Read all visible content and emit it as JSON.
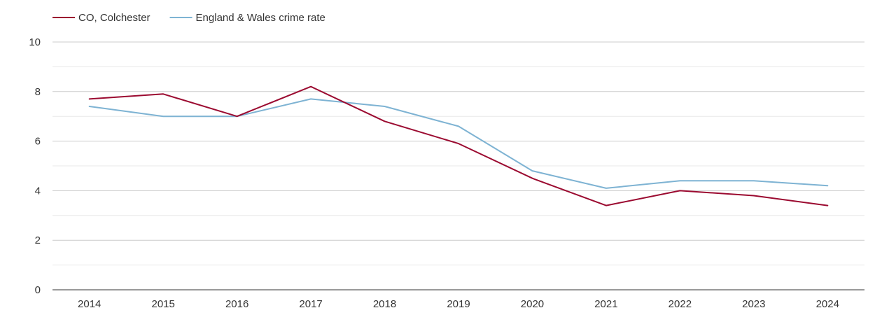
{
  "chart_data": {
    "type": "line",
    "title": "",
    "xlabel": "",
    "ylabel": "",
    "x": [
      "2014",
      "2015",
      "2016",
      "2017",
      "2018",
      "2019",
      "2020",
      "2021",
      "2022",
      "2023",
      "2024"
    ],
    "ylim": [
      0,
      10
    ],
    "yticks": [
      "0",
      "2",
      "4",
      "6",
      "8",
      "10"
    ],
    "grid": true,
    "legend_position": "top-left",
    "series": [
      {
        "name": "CO, Colchester",
        "color": "#9b0a30",
        "values": [
          7.7,
          7.9,
          7.0,
          8.2,
          6.8,
          5.9,
          4.5,
          3.4,
          4.0,
          3.8,
          3.4
        ]
      },
      {
        "name": "England & Wales crime rate",
        "color": "#7eb3d3",
        "values": [
          7.4,
          7.0,
          7.0,
          7.7,
          7.4,
          6.6,
          4.8,
          4.1,
          4.4,
          4.4,
          4.2
        ]
      }
    ]
  }
}
